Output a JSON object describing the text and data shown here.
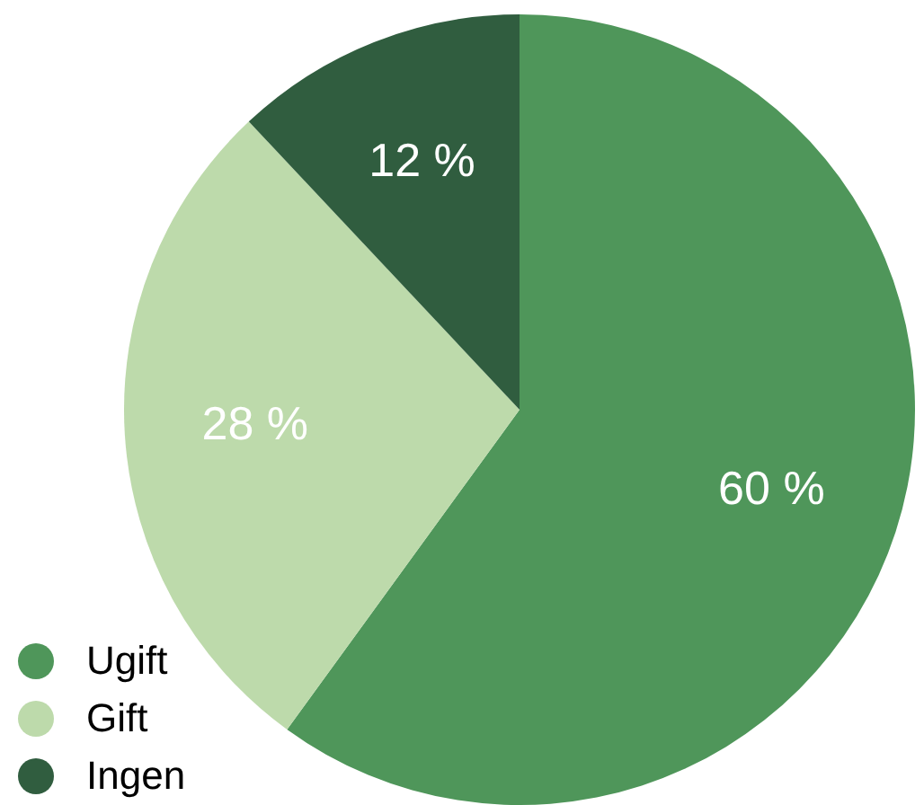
{
  "chart_data": {
    "type": "pie",
    "categories": [
      "Ugift",
      "Gift",
      "Ingen"
    ],
    "values": [
      60,
      28,
      12
    ],
    "colors": [
      "#4f965a",
      "#bddaab",
      "#305d3f"
    ],
    "value_labels": [
      "60 %",
      "28 %",
      "12 %"
    ],
    "legend": "bottom left"
  }
}
